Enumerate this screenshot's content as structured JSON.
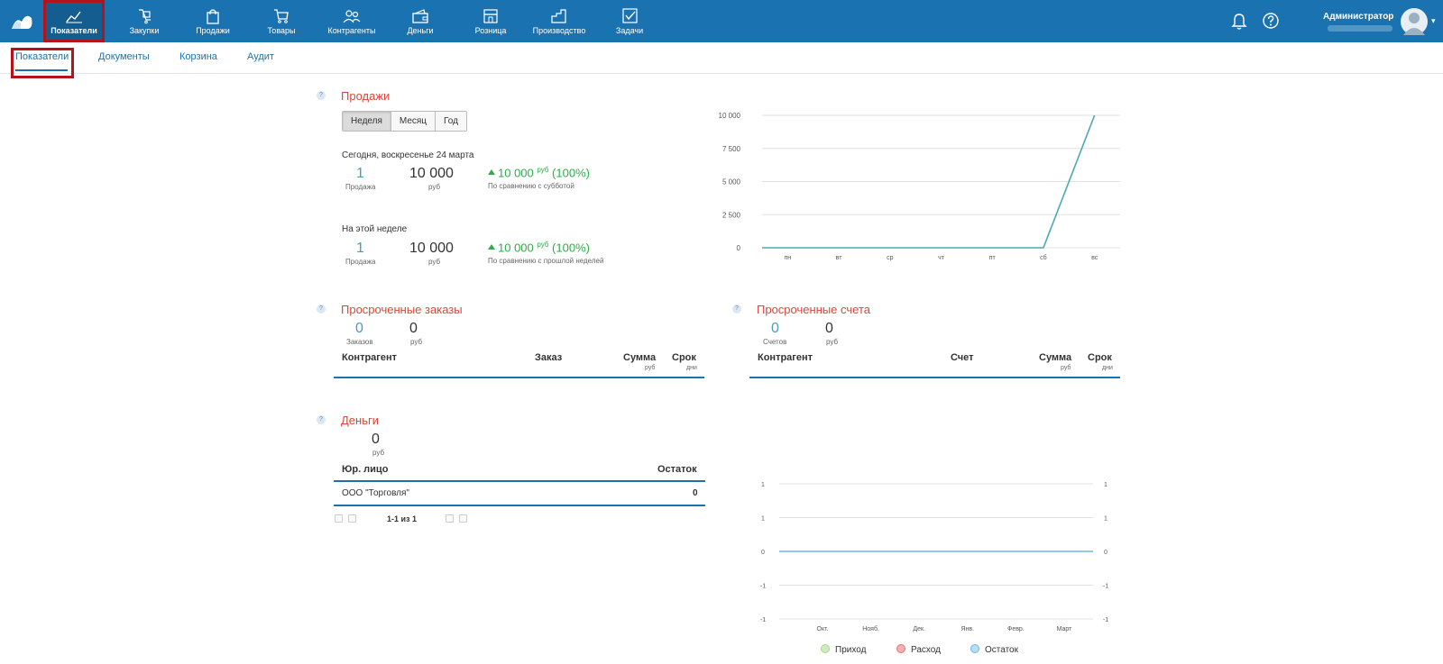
{
  "topbar": {
    "nav": [
      {
        "label": "Показатели",
        "icon": "chart-line-icon"
      },
      {
        "label": "Закупки",
        "icon": "purchase-icon"
      },
      {
        "label": "Продажи",
        "icon": "shopping-bag-icon"
      },
      {
        "label": "Товары",
        "icon": "cart-icon"
      },
      {
        "label": "Контрагенты",
        "icon": "users-icon"
      },
      {
        "label": "Деньги",
        "icon": "wallet-icon"
      },
      {
        "label": "Розница",
        "icon": "store-icon"
      },
      {
        "label": "Производство",
        "icon": "factory-icon"
      },
      {
        "label": "Задачи",
        "icon": "checkbox-icon"
      }
    ],
    "user": "Администратор"
  },
  "subtabs": [
    "Показатели",
    "Документы",
    "Корзина",
    "Аудит"
  ],
  "sales": {
    "title": "Продажи",
    "periods": [
      "Неделя",
      "Месяц",
      "Год"
    ],
    "today": {
      "label": "Сегодня, воскресенье 24 марта",
      "count": "1",
      "count_label": "Продажа",
      "amount": "10 000",
      "amount_label": "руб",
      "delta": "10 000",
      "delta_unit": "руб",
      "delta_pct": "(100%)",
      "compare": "По сравнению с субботой"
    },
    "week": {
      "label": "На этой неделе",
      "count": "1",
      "count_label": "Продажа",
      "amount": "10 000",
      "amount_label": "руб",
      "delta": "10 000",
      "delta_unit": "руб",
      "delta_pct": "(100%)",
      "compare": "По сравнению с прошлой неделей"
    }
  },
  "chart_data": [
    {
      "type": "line",
      "categories": [
        "пн",
        "вт",
        "ср",
        "чт",
        "пт",
        "сб",
        "вс"
      ],
      "series": [
        {
          "values": [
            0,
            0,
            0,
            0,
            0,
            0,
            10000
          ]
        }
      ],
      "yticks": [
        "0",
        "2 500",
        "5 000",
        "7 500",
        "10 000"
      ],
      "ylim": [
        0,
        10000
      ],
      "grid": true,
      "color": "#4aa8b3"
    },
    {
      "type": "line",
      "categories": [
        "Окт.",
        "Нояб.",
        "Дек.",
        "Янв.",
        "Февр.",
        "Март"
      ],
      "yticks": [
        "-1",
        "-1",
        "0",
        "1",
        "1"
      ],
      "series": [
        {
          "name": "Приход",
          "values": [
            0,
            0,
            0,
            0,
            0,
            0
          ],
          "color": "#a5d88a"
        },
        {
          "name": "Расход",
          "values": [
            0,
            0,
            0,
            0,
            0,
            0
          ],
          "color": "#e57373"
        },
        {
          "name": "Остаток",
          "values": [
            0,
            0,
            0,
            0,
            0,
            0
          ],
          "color": "#6fb7e0"
        }
      ],
      "grid": true,
      "legend": "bottom"
    }
  ],
  "overdue_orders": {
    "title": "Просроченные заказы",
    "count": "0",
    "count_label": "Заказов",
    "amount": "0",
    "amount_label": "руб",
    "cols": {
      "a": "Контрагент",
      "b": "Заказ",
      "c": "Сумма",
      "c_sub": "руб",
      "d": "Срок",
      "d_sub": "дни"
    }
  },
  "overdue_invoices": {
    "title": "Просроченные счета",
    "count": "0",
    "count_label": "Счетов",
    "amount": "0",
    "amount_label": "руб",
    "cols": {
      "a": "Контрагент",
      "b": "Счет",
      "c": "Сумма",
      "c_sub": "руб",
      "d": "Срок",
      "d_sub": "дни"
    }
  },
  "money": {
    "title": "Деньги",
    "amount": "0",
    "amount_label": "руб",
    "cols": {
      "a": "Юр. лицо",
      "b": "Остаток"
    },
    "rows": [
      {
        "name": "ООО \"Торговля\"",
        "value": "0"
      }
    ],
    "pager": "1-1 из 1"
  }
}
